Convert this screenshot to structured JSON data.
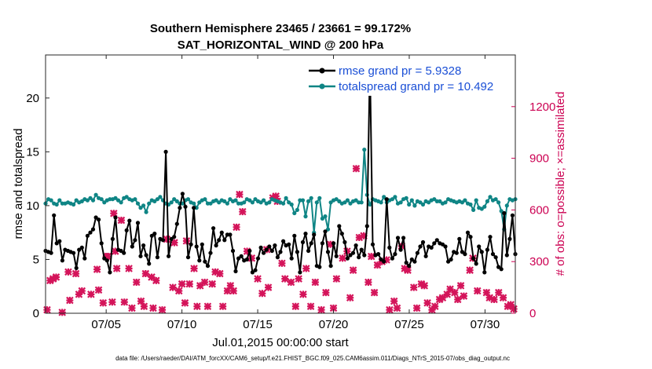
{
  "colors": {
    "rmse": "#000000",
    "totalspread": "#0f8585",
    "obs": "#d4145a",
    "legend_text": "#1a4fd6",
    "right_axis": "#cc0052"
  },
  "chart_data": {
    "type": "line",
    "title_line1": "Southern Hemisphere 23465 / 23661 = 99.172%",
    "title_line2": "SAT_HORIZONTAL_WIND @ 200 hPa",
    "xlabel": "Jul.01,2015 00:00:00 start",
    "ylabel_left": "rmse and totalspread",
    "ylabel_right": "# of obs: o=possible; ×=assimilated",
    "x_ticks": [
      "07/05",
      "07/10",
      "07/15",
      "07/20",
      "07/25",
      "07/30"
    ],
    "x_tick_days": [
      5,
      10,
      15,
      20,
      25,
      30
    ],
    "xlim": [
      1,
      32
    ],
    "ylim_left": [
      0,
      24
    ],
    "y_ticks_left": [
      "0",
      "5",
      "10",
      "15",
      "20"
    ],
    "ylim_right": [
      0,
      1500
    ],
    "y_ticks_right": [
      "0",
      "300",
      "600",
      "900",
      "1200"
    ],
    "legend": [
      {
        "name": "rmse",
        "label": "rmse grand pr = 5.9328"
      },
      {
        "name": "totalspread",
        "label": "totalspread grand pr = 10.492"
      }
    ],
    "series": [
      {
        "name": "rmse",
        "values": [
          5.8,
          5.7,
          5.6,
          9.1,
          6.5,
          6.7,
          4.9,
          5.9,
          5.8,
          5.7,
          5.6,
          4.2,
          5.9,
          6.1,
          5.1,
          7.2,
          7.5,
          7.8,
          8.9,
          8.7,
          6.5,
          5.1,
          4.9,
          3.8,
          6.9,
          8.9,
          5.9,
          5.8,
          5.6,
          7.7,
          8.6,
          6.2,
          6.8,
          8.4,
          5.3,
          6.3,
          5.4,
          4.6,
          7.2,
          7.4,
          5.2,
          6.9,
          6.8,
          15.0,
          5.3,
          6.9,
          7.1,
          8.3,
          9.8,
          11.1,
          9.9,
          5.2,
          6.4,
          9.8,
          6.2,
          4.9,
          6.4,
          4.8,
          4.4,
          5.6,
          7.9,
          6.3,
          6.8,
          7.5,
          6.8,
          7.3,
          7.3,
          5.8,
          3.9,
          5.1,
          5.3,
          4.9,
          5.0,
          5.8,
          3.8,
          4.0,
          5.1,
          6.1,
          5.6,
          5.9,
          6.2,
          5.8,
          6.3,
          5.2,
          5.7,
          6.7,
          6.3,
          6.4,
          5.1,
          7.2,
          5.7,
          3.8,
          6.6,
          7.4,
          5.8,
          6.5,
          7.3,
          4.4,
          4.3,
          6.5,
          7.6,
          5.7,
          4.4,
          6.5,
          5.3,
          8.1,
          7.4,
          6.6,
          5.1,
          5.4,
          5.6,
          6.3,
          5.2,
          5.9,
          5.4,
          8.1,
          23.2,
          6.4,
          5.4,
          5.5,
          5.0,
          4.8,
          10.6,
          6.1,
          5.1,
          5.5,
          7.0,
          5.9,
          7.0,
          4.7,
          4.4,
          5.0,
          4.8,
          5.6,
          6.2,
          6.6,
          5.3,
          6.2,
          6.1,
          6.5,
          6.8,
          6.5,
          6.4,
          6.2,
          4.8,
          5.0,
          5.7,
          5.6,
          6.9,
          5.7,
          5.5,
          7.5,
          7.1,
          5.1,
          4.6,
          6.2,
          5.7,
          3.8,
          5.9,
          7.1,
          5.5,
          5.2,
          4.3,
          4.1,
          9.3,
          5.4,
          6.9,
          9.1,
          5.5
        ],
        "color": "#000000"
      },
      {
        "name": "totalspread",
        "values": [
          10.2,
          10.6,
          10.5,
          10.2,
          10.1,
          10.5,
          10.2,
          10.2,
          10.3,
          10.2,
          10.1,
          10.5,
          10.3,
          10.4,
          10.6,
          10.5,
          10.7,
          10.5,
          11.0,
          10.7,
          10.6,
          10.3,
          10.5,
          10.6,
          10.6,
          10.7,
          10.5,
          10.3,
          10.7,
          10.8,
          10.6,
          10.5,
          10.6,
          10.2,
          9.8,
          10.0,
          9.4,
          10.2,
          10.5,
          10.4,
          10.6,
          10.8,
          10.5,
          10.2,
          10.1,
          10.3,
          10.6,
          10.4,
          10.2,
          10.2,
          10.5,
          10.6,
          10.3,
          10.2,
          9.8,
          10.3,
          10.5,
          10.6,
          10.2,
          10.2,
          10.4,
          10.5,
          10.3,
          10.5,
          10.4,
          10.2,
          10.6,
          10.4,
          10.5,
          10.2,
          10.2,
          10.3,
          10.6,
          10.5,
          10.3,
          10.6,
          10.4,
          10.3,
          10.5,
          10.2,
          10.3,
          10.6,
          10.5,
          10.4,
          10.3,
          10.2,
          10.7,
          10.3,
          10.1,
          9.3,
          9.6,
          10.5,
          10.5,
          9.0,
          10.4,
          10.7,
          7.5,
          10.3,
          10.7,
          8.8,
          9.0,
          7.8,
          10.3,
          10.5,
          10.6,
          10.4,
          10.2,
          10.3,
          10.5,
          10.2,
          10.4,
          10.5,
          10.3,
          10.3,
          15.2,
          11.0,
          10.1,
          10.6,
          10.5,
          10.4,
          10.3,
          10.8,
          10.3,
          10.5,
          10.6,
          10.8,
          10.2,
          10.3,
          10.6,
          10.7,
          10.1,
          10.5,
          10.0,
          10.4,
          10.3,
          10.1,
          10.4,
          10.3,
          10.5,
          10.6,
          10.4,
          10.4,
          10.2,
          10.3,
          10.6,
          10.5,
          10.4,
          10.3,
          10.4,
          10.3,
          10.5,
          10.2,
          10.1,
          9.6,
          10.5,
          9.8,
          9.7,
          9.9,
          10.4,
          10.8,
          10.5,
          10.6,
          10.3,
          9.5,
          7.8,
          10.0,
          10.6,
          10.5,
          10.6
        ],
        "color": "#0f8585"
      }
    ],
    "obs_assimilated": [
      {
        "day": 1.1,
        "count": 20
      },
      {
        "day": 1.3,
        "count": 190
      },
      {
        "day": 1.5,
        "count": 200
      },
      {
        "day": 1.7,
        "count": 210
      },
      {
        "day": 2.1,
        "count": 5
      },
      {
        "day": 2.5,
        "count": 240
      },
      {
        "day": 2.6,
        "count": 75
      },
      {
        "day": 3.0,
        "count": 230
      },
      {
        "day": 3.2,
        "count": 110
      },
      {
        "day": 3.4,
        "count": 130
      },
      {
        "day": 4.0,
        "count": 110
      },
      {
        "day": 4.4,
        "count": 255
      },
      {
        "day": 4.5,
        "count": 135
      },
      {
        "day": 4.8,
        "count": 60
      },
      {
        "day": 5.0,
        "count": 330
      },
      {
        "day": 5.1,
        "count": 330
      },
      {
        "day": 5.4,
        "count": 65
      },
      {
        "day": 5.5,
        "count": 580
      },
      {
        "day": 5.6,
        "count": 360
      },
      {
        "day": 5.7,
        "count": 260
      },
      {
        "day": 6.0,
        "count": 540
      },
      {
        "day": 6.2,
        "count": 65
      },
      {
        "day": 6.5,
        "count": 260
      },
      {
        "day": 6.7,
        "count": 30
      },
      {
        "day": 7.0,
        "count": 180
      },
      {
        "day": 7.3,
        "count": 70
      },
      {
        "day": 7.5,
        "count": 40
      },
      {
        "day": 7.6,
        "count": 230
      },
      {
        "day": 8.0,
        "count": 210
      },
      {
        "day": 8.1,
        "count": 30
      },
      {
        "day": 8.3,
        "count": 190
      },
      {
        "day": 8.7,
        "count": 20
      },
      {
        "day": 9.0,
        "count": 430
      },
      {
        "day": 9.4,
        "count": 150
      },
      {
        "day": 9.5,
        "count": 410
      },
      {
        "day": 9.8,
        "count": 130
      },
      {
        "day": 10.0,
        "count": 170
      },
      {
        "day": 10.2,
        "count": 60
      },
      {
        "day": 10.3,
        "count": 420
      },
      {
        "day": 10.5,
        "count": 170
      },
      {
        "day": 10.8,
        "count": 260
      },
      {
        "day": 11.0,
        "count": 40
      },
      {
        "day": 11.2,
        "count": 160
      },
      {
        "day": 11.5,
        "count": 180
      },
      {
        "day": 11.7,
        "count": 40
      },
      {
        "day": 12.0,
        "count": 170
      },
      {
        "day": 12.2,
        "count": 240
      },
      {
        "day": 12.5,
        "count": 230
      },
      {
        "day": 12.7,
        "count": 40
      },
      {
        "day": 13.0,
        "count": 130
      },
      {
        "day": 13.2,
        "count": 160
      },
      {
        "day": 13.4,
        "count": 130
      },
      {
        "day": 13.6,
        "count": 500
      },
      {
        "day": 13.8,
        "count": 690
      },
      {
        "day": 14.0,
        "count": 590
      },
      {
        "day": 14.3,
        "count": 360
      },
      {
        "day": 14.6,
        "count": 320
      },
      {
        "day": 15.0,
        "count": 200
      },
      {
        "day": 15.3,
        "count": 115
      },
      {
        "day": 15.6,
        "count": 370
      },
      {
        "day": 15.7,
        "count": 150
      },
      {
        "day": 16.0,
        "count": 670
      },
      {
        "day": 16.2,
        "count": 680
      },
      {
        "day": 16.3,
        "count": 650
      },
      {
        "day": 16.6,
        "count": 290
      },
      {
        "day": 16.8,
        "count": 200
      },
      {
        "day": 17.2,
        "count": 180
      },
      {
        "day": 17.5,
        "count": 40
      },
      {
        "day": 17.7,
        "count": 200
      },
      {
        "day": 18.0,
        "count": 110
      },
      {
        "day": 18.2,
        "count": 260
      },
      {
        "day": 18.5,
        "count": 40
      },
      {
        "day": 18.8,
        "count": 180
      },
      {
        "day": 19.2,
        "count": 20
      },
      {
        "day": 19.5,
        "count": 120
      },
      {
        "day": 19.8,
        "count": 400
      },
      {
        "day": 20.0,
        "count": 30
      },
      {
        "day": 20.2,
        "count": 200
      },
      {
        "day": 20.6,
        "count": 320
      },
      {
        "day": 20.9,
        "count": 360
      },
      {
        "day": 21.1,
        "count": 90
      },
      {
        "day": 21.3,
        "count": 250
      },
      {
        "day": 21.5,
        "count": 840
      },
      {
        "day": 21.7,
        "count": 440
      },
      {
        "day": 22.0,
        "count": 450
      },
      {
        "day": 22.3,
        "count": 180
      },
      {
        "day": 22.5,
        "count": 330
      },
      {
        "day": 22.7,
        "count": 120
      },
      {
        "day": 22.9,
        "count": 280
      },
      {
        "day": 23.2,
        "count": 300
      },
      {
        "day": 23.5,
        "count": 310
      },
      {
        "day": 23.7,
        "count": 20
      },
      {
        "day": 24.0,
        "count": 70
      },
      {
        "day": 24.2,
        "count": 30
      },
      {
        "day": 24.5,
        "count": 390
      },
      {
        "day": 24.7,
        "count": 260
      },
      {
        "day": 24.9,
        "count": 250
      },
      {
        "day": 25.3,
        "count": 150
      },
      {
        "day": 25.5,
        "count": 30
      },
      {
        "day": 25.8,
        "count": 170
      },
      {
        "day": 26.0,
        "count": 160
      },
      {
        "day": 26.2,
        "count": 60
      },
      {
        "day": 26.5,
        "count": 20
      },
      {
        "day": 26.7,
        "count": 40
      },
      {
        "day": 27.0,
        "count": 80
      },
      {
        "day": 27.2,
        "count": 90
      },
      {
        "day": 27.5,
        "count": 110
      },
      {
        "day": 27.7,
        "count": 140
      },
      {
        "day": 28.0,
        "count": 120
      },
      {
        "day": 28.2,
        "count": 80
      },
      {
        "day": 28.4,
        "count": 160
      },
      {
        "day": 28.6,
        "count": 100
      },
      {
        "day": 29.0,
        "count": 250
      },
      {
        "day": 29.2,
        "count": 320
      },
      {
        "day": 29.5,
        "count": 130
      },
      {
        "day": 30.1,
        "count": 120
      },
      {
        "day": 30.3,
        "count": 90
      },
      {
        "day": 30.6,
        "count": 80
      },
      {
        "day": 30.9,
        "count": 120
      },
      {
        "day": 31.2,
        "count": 90
      },
      {
        "day": 31.5,
        "count": 40
      },
      {
        "day": 31.7,
        "count": 50
      },
      {
        "day": 31.9,
        "count": 25
      }
    ]
  },
  "footer": "data file: /Users/raeder/DAI/ATM_forcXX/CAM6_setup/f.e21.FHIST_BGC.f09_025.CAM6assim.011/Diags_NTrS_2015-07/obs_diag_output.nc"
}
